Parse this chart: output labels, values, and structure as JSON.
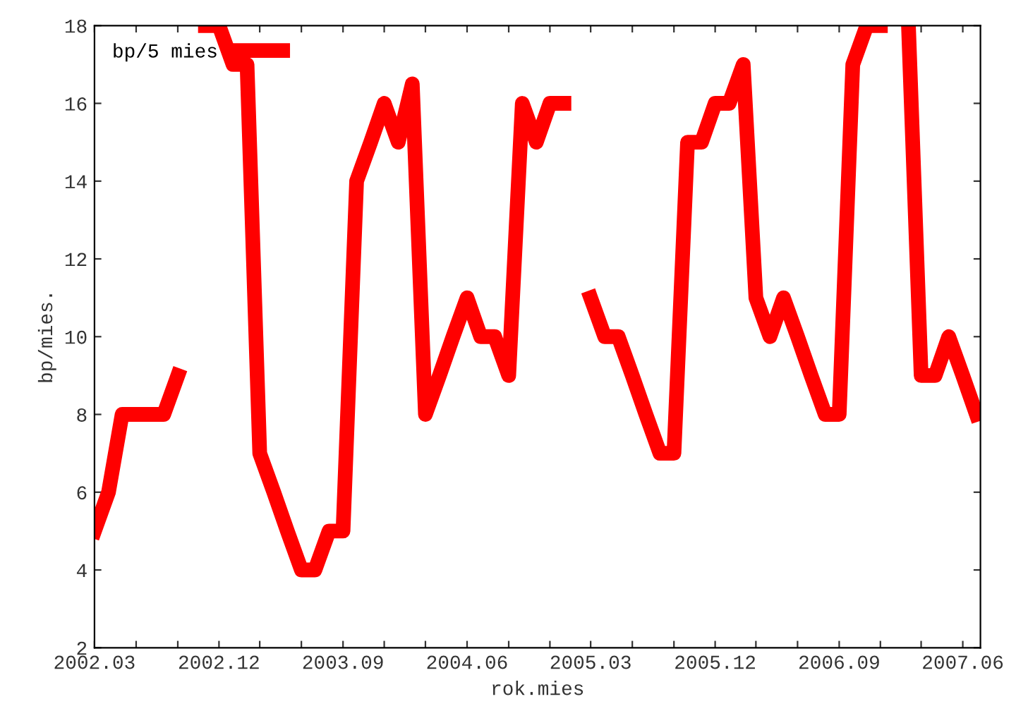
{
  "chart_data": {
    "type": "line",
    "xlabel": "rok.mies",
    "ylabel": "bp/mies.",
    "x": [
      "2002-03",
      "2002-04",
      "2002-05",
      "2002-06",
      "2002-07",
      "2002-08",
      "2002-09",
      "2002-10",
      "2002-11",
      "2002-12",
      "2003-01",
      "2003-02",
      "2003-03",
      "2003-04",
      "2003-05",
      "2003-06",
      "2003-07",
      "2003-08",
      "2003-09",
      "2003-10",
      "2003-11",
      "2003-12",
      "2004-01",
      "2004-02",
      "2004-03",
      "2004-04",
      "2004-05",
      "2004-06",
      "2004-07",
      "2004-08",
      "2004-09",
      "2004-10",
      "2004-11",
      "2004-12",
      "2005-01",
      "2005-02",
      "2005-03",
      "2005-04",
      "2005-05",
      "2005-06",
      "2005-07",
      "2005-08",
      "2005-09",
      "2005-10",
      "2005-11",
      "2005-12",
      "2006-01",
      "2006-02",
      "2006-03",
      "2006-04",
      "2006-05",
      "2006-06",
      "2006-07",
      "2006-08",
      "2006-09",
      "2006-10",
      "2006-11",
      "2006-12",
      "2007-01",
      "2007-02",
      "2007-03",
      "2007-04",
      "2007-05",
      "2007-06",
      "2007-07"
    ],
    "series": [
      {
        "name": "bp/5 mies",
        "color": "#ff0000",
        "values": [
          5,
          6,
          8,
          8,
          8,
          8,
          9,
          null,
          18,
          18,
          17,
          17,
          7,
          6,
          5,
          4,
          4,
          5,
          5,
          14,
          15,
          16,
          15,
          16.5,
          8,
          9,
          10,
          11,
          10,
          10,
          9,
          16,
          15,
          16,
          16,
          null,
          11,
          10,
          10,
          9,
          8,
          7,
          7,
          15,
          15,
          16,
          16,
          17,
          11,
          10,
          11,
          10,
          9,
          8,
          8,
          17,
          18,
          18,
          null,
          18,
          9,
          9,
          10,
          9,
          8
        ]
      }
    ],
    "xlim": [
      "2002-03",
      "2007-07-10"
    ],
    "xticks": [
      {
        "value": "2002-03",
        "label": "2002.03"
      },
      {
        "value": "2002-06",
        "label": null
      },
      {
        "value": "2002-09",
        "label": null
      },
      {
        "value": "2002-12",
        "label": "2002.12"
      },
      {
        "value": "2003-03",
        "label": null
      },
      {
        "value": "2003-06",
        "label": null
      },
      {
        "value": "2003-09",
        "label": "2003.09"
      },
      {
        "value": "2003-12",
        "label": null
      },
      {
        "value": "2004-03",
        "label": null
      },
      {
        "value": "2004-06",
        "label": "2004.06"
      },
      {
        "value": "2004-09",
        "label": null
      },
      {
        "value": "2004-12",
        "label": null
      },
      {
        "value": "2005-03",
        "label": "2005.03"
      },
      {
        "value": "2005-06",
        "label": null
      },
      {
        "value": "2005-09",
        "label": null
      },
      {
        "value": "2005-12",
        "label": "2005.12"
      },
      {
        "value": "2006-03",
        "label": null
      },
      {
        "value": "2006-06",
        "label": null
      },
      {
        "value": "2006-09",
        "label": "2006.09"
      },
      {
        "value": "2006-12",
        "label": null
      },
      {
        "value": "2007-03",
        "label": null
      },
      {
        "value": "2007-06",
        "label": "2007.06"
      }
    ],
    "ylim": [
      2,
      18
    ],
    "yticks": [
      2,
      4,
      6,
      8,
      10,
      12,
      14,
      16,
      18
    ],
    "grid": false,
    "legend": "top left",
    "marker": "none",
    "line_style": "solid"
  }
}
